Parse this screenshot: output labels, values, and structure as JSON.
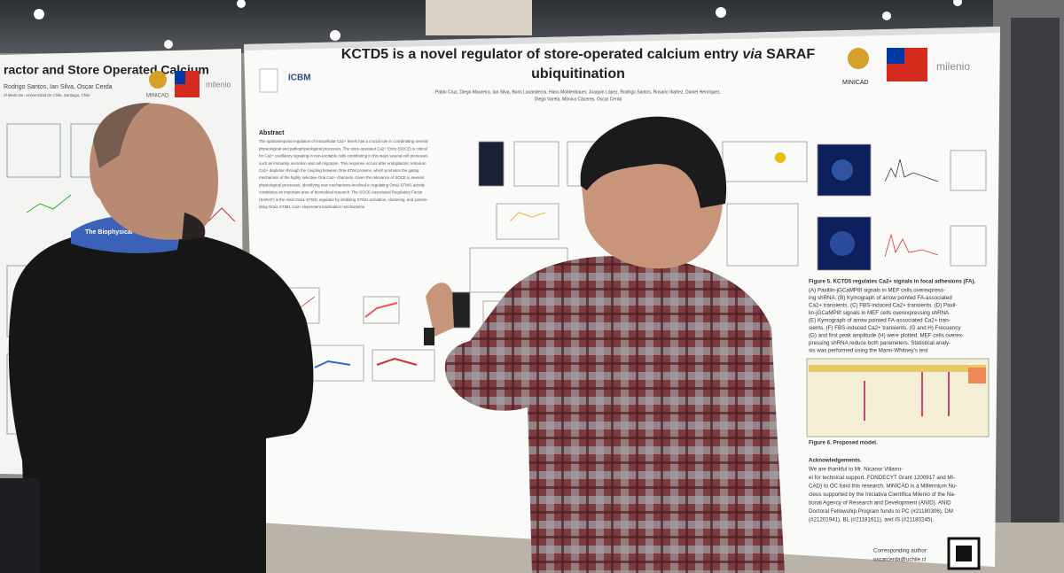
{
  "left_poster": {
    "title": "ractor and Store Operated Calcium",
    "authors": "Rodrigo Santos, Ian Silva, Oscar Cerda",
    "affiliation": "of Medicine, Universidad de Chile, Santiago, Chile",
    "logos": [
      "MINICAD",
      "milenio"
    ]
  },
  "main_poster": {
    "title_parts": [
      "KCTD5 is a novel regulator of store-operated calcium entry",
      "via",
      "SARAF"
    ],
    "title_line2": "ubiquitination",
    "logos": [
      "ICBM",
      "MINICAD",
      "milenio"
    ],
    "authors": "Pablo Cruz, Diego Maureira, Ian Silva, Boris Lavanderos, Hans Moldenhauer, Joaquín López, Rodrigo Santos, Rosario Ibañez, Daniel Henríquez,",
    "authors_line2": "Diego Varela, Mónica Cáceres, Oscar Cerda",
    "abstract_heading": "Abstract",
    "abstract_lines": [
      "The spatiotemporal regulation of intracellular Ca2+ levels has a crucial role in coordinating several",
      "physiological and pathophysiological processes. The store-operated Ca2+ Entry (SOCE) is critical",
      "for Ca2+ oscillatory signaling in non-excitable cells contributing in this ways several cell processes",
      "such as immunity, secretion and cell migration. This response occurs after endoplasmic reticulum",
      "Ca2+ depletion through the coupling between Orai-STIM proteins, which promotes the gating",
      "mechanism of the highly selective Orai Ca2+ channels. Given the relevance of SOCE in several",
      "physiological processes, identifying new mechanisms involved in regulating Orai1-STIM1 activity",
      "constitutes an important area of biomedical research. The SOCE-Associated Regulatory Factor",
      "(SARAF) is the main Orai1-STIM1 regulator by inhibiting STIM1 activation, clustering, and potenti-",
      "ating Orai1-STIM1 Ca2+-dependent inactivation mechanisms."
    ],
    "figure5_title": "Figure 5. KCTD5 regulates Ca2+ signals in focal adhesions (FA).",
    "figure5_lines": [
      "(A) Paxillin-jGCaMP8f signals in MEF cells overexpress-",
      "ing shRNA. (B) Kymograph of arrow pointed FA-associated",
      "Ca2+ transients. (C) FBS-induced Ca2+ transients. (D) Paxil-",
      "lin-jGCaMP8f signals in MEF cells overexpressing shRNA.",
      "(E) Kymograph of arrow pointed FA-associated Ca2+ tran-",
      "sients. (F) FBS-induced Ca2+ transients. (G and H) Frecuency",
      "(G) and first peak amplitude (H) were plotted. MEF cells overex-",
      "pressing shRNA reduce both parameters. Statistical analy-",
      "sis was performed using the Mann-Whitney's test"
    ],
    "figure6_title": "Figure 6. Proposed model.",
    "acknowledgements_heading": "Acknowledgements.",
    "acknowledgements_lines": [
      "We are thankful to Mr. Nicanor Villarro-",
      "el for technical support. FONDECYT Grant 1200917 and Mi-",
      "CAD) to OC fund this research. MiNICAD is a Millennium Nu-",
      "cleus supported by the Iniciativa Científica Milenio of the Na-",
      "tional Agency of Research and Development (ANID). ANID",
      "Doctoral Fellowship Program funds to PC (#21180306), DM",
      "(#21201941), BL (#21181611), and IS (#21180245)."
    ],
    "contact_label": "Corresponding author:",
    "contact_email": "oscarcerda@uchile.cl"
  },
  "lanyard": "The Biophysical"
}
